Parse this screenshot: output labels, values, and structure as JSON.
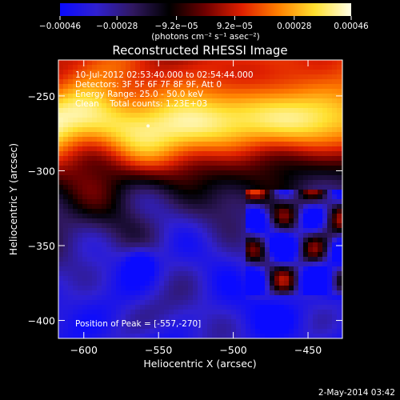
{
  "chart_data": {
    "type": "heatmap",
    "title": "Reconstructed RHESSI Image",
    "xlabel": "Heliocentric X (arcsec)",
    "ylabel": "Heliocentric Y (arcsec)",
    "xlim": [
      -617,
      -427
    ],
    "ylim": [
      -412,
      -226
    ],
    "x_ticks": [
      -600,
      -550,
      -500,
      -450
    ],
    "x_tick_labels": [
      "−600",
      "−550",
      "−500",
      "−450"
    ],
    "y_ticks": [
      -250,
      -300,
      -350,
      -400
    ],
    "y_tick_labels": [
      "−250",
      "−300",
      "−350",
      "−400"
    ],
    "colorbar": {
      "min": -0.00046,
      "max": 0.00046,
      "ticks": [
        -0.00046,
        -0.00028,
        -9.2e-05,
        9.2e-05,
        0.00028,
        0.00046
      ],
      "tick_labels": [
        "−0.00046",
        "−0.00028",
        "−9.2e−05",
        "9.2e−05",
        "0.00028",
        "0.00046"
      ],
      "units_label": "(photons cm⁻² s⁻¹ asec⁻²)",
      "colormap": [
        "#0a0aff",
        "#3020d0",
        "#301860",
        "#000000",
        "#700000",
        "#e02000",
        "#ff8000",
        "#ffe030",
        "#ffffe8"
      ]
    },
    "annotations": [
      "10-Jul-2012 02:53:40.000 to 02:54:44.000",
      "Detectors: 3F 5F 6F 7F 8F 9F, Att 0",
      "Energy Range: 25.0 - 50.0 keV",
      "Clean    Total counts: 1.23E+03"
    ],
    "peak_label": "Position of Peak = [-557,-270]",
    "peak": {
      "x": -557,
      "y": -270
    },
    "grid": false
  },
  "footer_date": "2-May-2014 03:42"
}
